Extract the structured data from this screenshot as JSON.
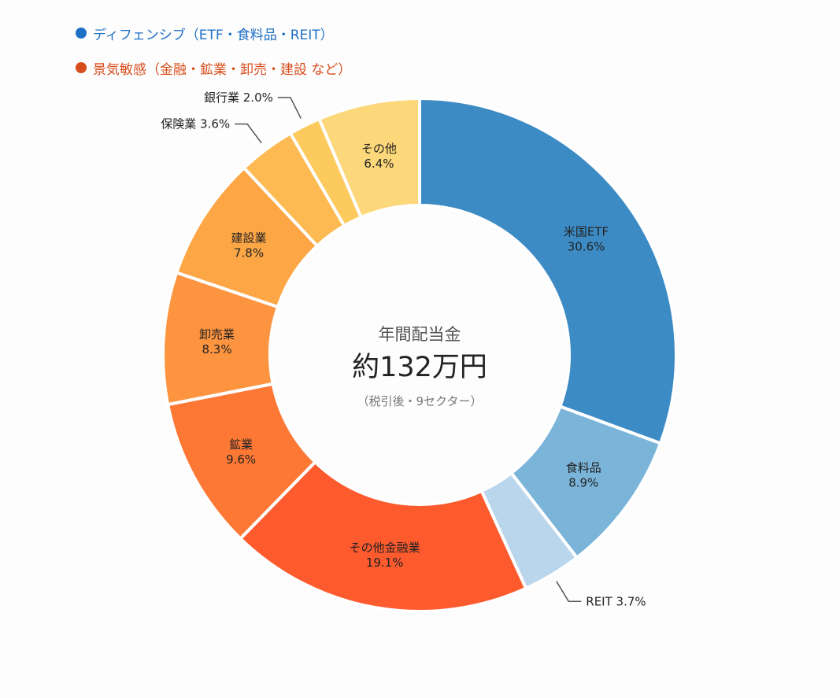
{
  "legend": [
    {
      "label": "ディフェンシブ（ETF・食料品・REIT）",
      "color": "#1f6fc5"
    },
    {
      "label": "景気敏感（金融・鉱業・卸売・建設 など）",
      "color": "#d84d1c"
    }
  ],
  "center": {
    "title": "年間配当金",
    "value": "約132万円",
    "note": "（税引後・9セクター）"
  },
  "chart_data": {
    "type": "pie",
    "donut": true,
    "slices": [
      {
        "name": "米国ETF",
        "value": 30.6,
        "label": "30.6%",
        "color": "#3d8bc4",
        "label_pos": "inside"
      },
      {
        "name": "食料品",
        "value": 8.9,
        "label": "8.9%",
        "color": "#7ab4d9",
        "label_pos": "inside"
      },
      {
        "name": "REIT",
        "value": 3.7,
        "label": "3.7%",
        "color": "#bad6ec",
        "label_pos": "outside"
      },
      {
        "name": "その他金融業",
        "value": 19.1,
        "label": "19.1%",
        "color": "#fd5a2e",
        "label_pos": "inside"
      },
      {
        "name": "鉱業",
        "value": 9.6,
        "label": "9.6%",
        "color": "#fd7835",
        "label_pos": "inside"
      },
      {
        "name": "卸売業",
        "value": 8.3,
        "label": "8.3%",
        "color": "#fd9440",
        "label_pos": "inside"
      },
      {
        "name": "建設業",
        "value": 7.8,
        "label": "7.8%",
        "color": "#fda646",
        "label_pos": "inside"
      },
      {
        "name": "保険業",
        "value": 3.6,
        "label": "3.6%",
        "color": "#fdba52",
        "label_pos": "outside"
      },
      {
        "name": "銀行業",
        "value": 2.0,
        "label": "2.0%",
        "color": "#fdca5e",
        "label_pos": "outside"
      },
      {
        "name": "その他",
        "value": 6.4,
        "label": "6.4%",
        "color": "#fdd87a",
        "label_pos": "inside"
      }
    ]
  }
}
